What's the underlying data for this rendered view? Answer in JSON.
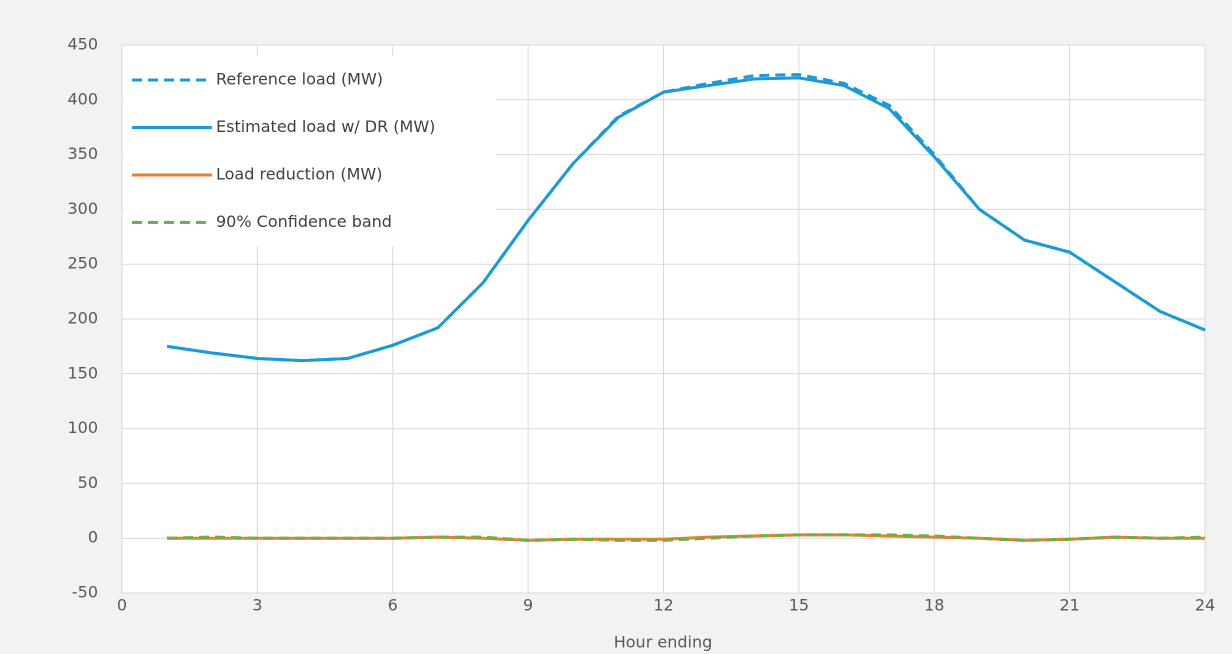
{
  "chart_data": {
    "type": "line",
    "x_label": "Hour ending",
    "x": [
      1,
      2,
      3,
      4,
      5,
      6,
      7,
      8,
      9,
      10,
      11,
      12,
      13,
      14,
      15,
      16,
      17,
      18,
      19,
      20,
      21,
      22,
      23,
      24
    ],
    "series": [
      {
        "name": "Reference load (MW)",
        "color": "#1a9bd7",
        "dash": true,
        "values": [
          175,
          169,
          164,
          162,
          164,
          176,
          192,
          233,
          290,
          342,
          385,
          407,
          415,
          422,
          423,
          415,
          395,
          350,
          300,
          272,
          261,
          234,
          207,
          190
        ]
      },
      {
        "name": "Estimated load w/ DR (MW)",
        "color": "#1a9bd7",
        "dash": false,
        "values": [
          175,
          169,
          164,
          162,
          164,
          176,
          192,
          233,
          290,
          342,
          384,
          407,
          413,
          419,
          420,
          413,
          392,
          348,
          300,
          272,
          261,
          234,
          207,
          190
        ]
      },
      {
        "name": "Load reduction (MW)",
        "color": "#ed7d31",
        "dash": false,
        "values": [
          0,
          0,
          0,
          0,
          0,
          0,
          1,
          0,
          -2,
          -1,
          -1,
          -1,
          1,
          2,
          3,
          3,
          2,
          1,
          0,
          -2,
          -1,
          1,
          0,
          0
        ]
      },
      {
        "name": "90% Confidence band",
        "color": "#70ad47",
        "dash": true,
        "values": [
          0,
          1,
          0,
          0,
          0,
          0,
          1,
          1,
          -2,
          -1,
          -2,
          -2,
          0,
          2,
          3,
          3,
          3,
          2,
          0,
          -2,
          -1,
          1,
          0,
          1
        ]
      }
    ],
    "xlim": [
      0,
      24
    ],
    "xticks": [
      0,
      3,
      6,
      9,
      12,
      15,
      18,
      21,
      24
    ],
    "ylim": [
      -50,
      450
    ],
    "yticks": [
      -50,
      0,
      50,
      100,
      150,
      200,
      250,
      300,
      350,
      400,
      450
    ],
    "grid": true,
    "legend": "top-left"
  }
}
